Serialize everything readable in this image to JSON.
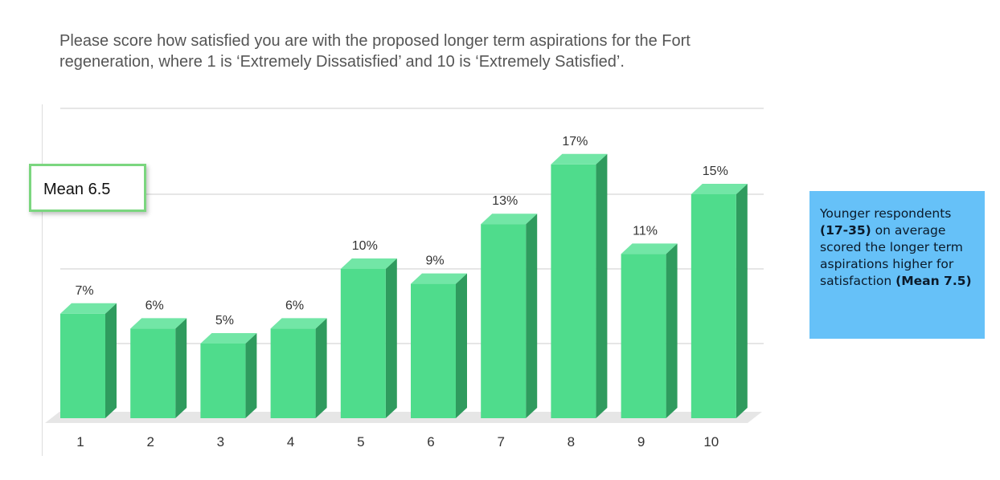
{
  "title": "Please score how satisfied you are with the proposed longer term aspirations for the Fort regeneration, where 1 is ‘Extremely Dissatisfied’ and 10 is ‘Extremely Satisfied’.",
  "mean_box": {
    "text": "Mean 6.5"
  },
  "callout": {
    "line1": "Younger respondents",
    "bold1": "(17-35)",
    "line2": " on average scored the longer term aspirations higher for satisfaction ",
    "bold2": "(Mean 7.5)"
  },
  "colors": {
    "bar_front": "#4fdc8c",
    "bar_top": "#72e6a6",
    "bar_side": "#2f9b5e",
    "floor": "#e6e6e6",
    "grid": "#cccccc",
    "callout": "#66c1f8",
    "mean_border": "#7bd67f"
  },
  "chart_data": {
    "type": "bar",
    "categories": [
      "1",
      "2",
      "3",
      "4",
      "5",
      "6",
      "7",
      "8",
      "9",
      "10"
    ],
    "values": [
      7,
      6,
      5,
      6,
      10,
      9,
      13,
      17,
      11,
      15
    ],
    "data_labels": [
      "7%",
      "6%",
      "5%",
      "6%",
      "10%",
      "9%",
      "13%",
      "17%",
      "11%",
      "15%"
    ],
    "ylim": [
      0,
      20
    ],
    "grid": true,
    "legend": "none",
    "xlabel": "",
    "ylabel": ""
  }
}
